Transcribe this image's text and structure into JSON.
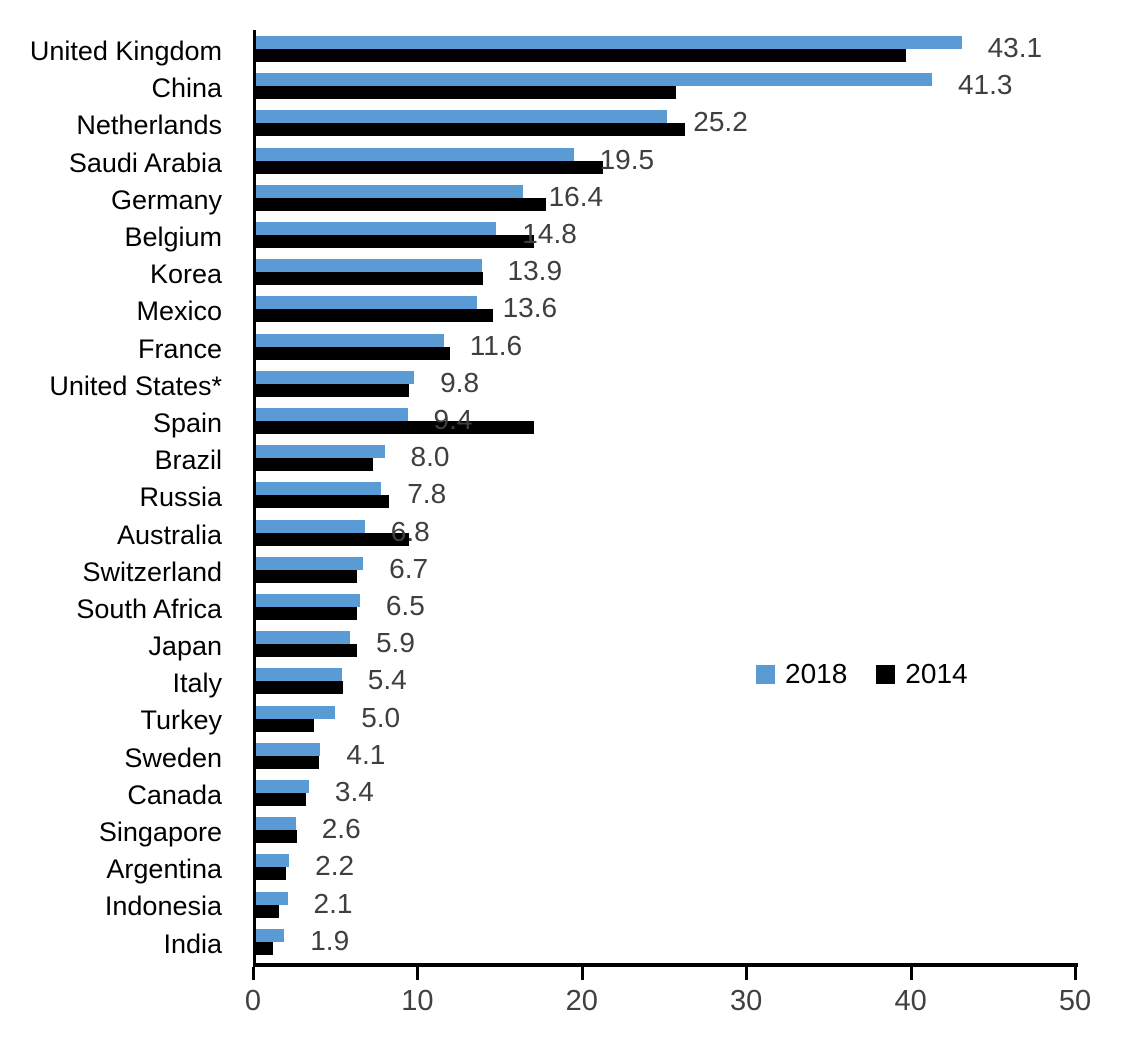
{
  "chart_data": {
    "type": "bar",
    "orientation": "horizontal",
    "title": "",
    "xlabel": "",
    "ylabel": "",
    "xlim": [
      0,
      50
    ],
    "xticks": [
      0,
      10,
      20,
      30,
      40,
      50
    ],
    "grid": false,
    "legend_position": "middle-right",
    "data_labels_series": "2018",
    "categories": [
      "United Kingdom",
      "China",
      "Netherlands",
      "Saudi Arabia",
      "Germany",
      "Belgium",
      "Korea",
      "Mexico",
      "France",
      "United States*",
      "Spain",
      "Brazil",
      "Russia",
      "Australia",
      "Switzerland",
      "South Africa",
      "Japan",
      "Italy",
      "Turkey",
      "Sweden",
      "Canada",
      "Singapore",
      "Argentina",
      "Indonesia",
      "India"
    ],
    "series": [
      {
        "name": "2018",
        "color": "#5B9BD5",
        "values": [
          43.1,
          41.3,
          25.2,
          19.5,
          16.4,
          14.8,
          13.9,
          13.6,
          11.6,
          9.8,
          9.4,
          8.0,
          7.8,
          6.8,
          6.7,
          6.5,
          5.9,
          5.4,
          5.0,
          4.1,
          3.4,
          2.6,
          2.2,
          2.1,
          1.9
        ]
      },
      {
        "name": "2014",
        "color": "#000000",
        "values": [
          39.7,
          25.7,
          26.3,
          21.3,
          17.8,
          17.1,
          14.0,
          14.6,
          12.0,
          9.5,
          17.1,
          7.3,
          8.3,
          9.5,
          6.3,
          6.3,
          6.3,
          5.5,
          3.7,
          4.0,
          3.2,
          2.7,
          2.0,
          1.6,
          1.2
        ]
      }
    ]
  },
  "colors": {
    "series_2018": "#5B9BD5",
    "series_2014": "#000000",
    "data_label": "#3f3f3f",
    "axis": "#000000",
    "tick_label": "#404040"
  }
}
